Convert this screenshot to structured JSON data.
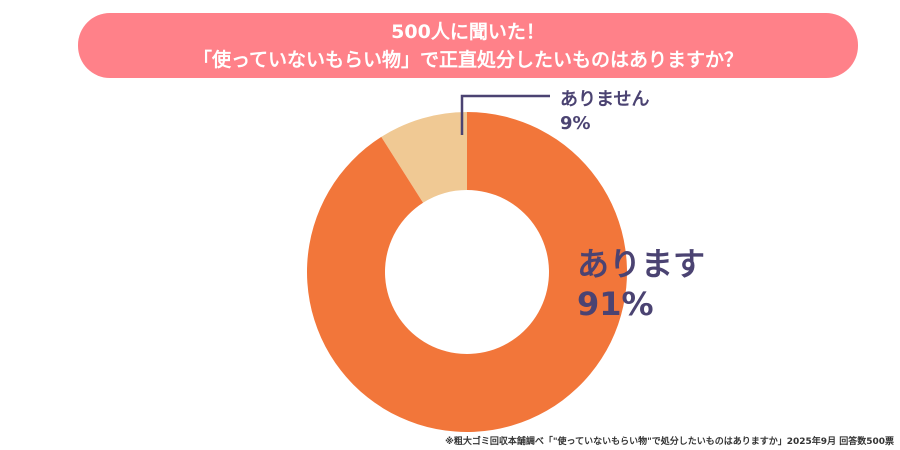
{
  "title": {
    "line1": "500人に聞いた！",
    "line2": "「使っていないもらい物」で正直処分したいものはありますか？"
  },
  "chart_data": {
    "type": "pie",
    "donut": true,
    "categories": [
      "ありません",
      "あります"
    ],
    "values": [
      9,
      91
    ],
    "labels": [
      {
        "name": "ありません",
        "value": "9%"
      },
      {
        "name": "あります",
        "value": "91%"
      }
    ],
    "colors": [
      "#f0c994",
      "#f2763a"
    ]
  },
  "footer": "※粗大ゴミ回収本舗調べ「\"使っていないもらい物\"で処分したいものはありますか」2025年9月 回答数500票"
}
